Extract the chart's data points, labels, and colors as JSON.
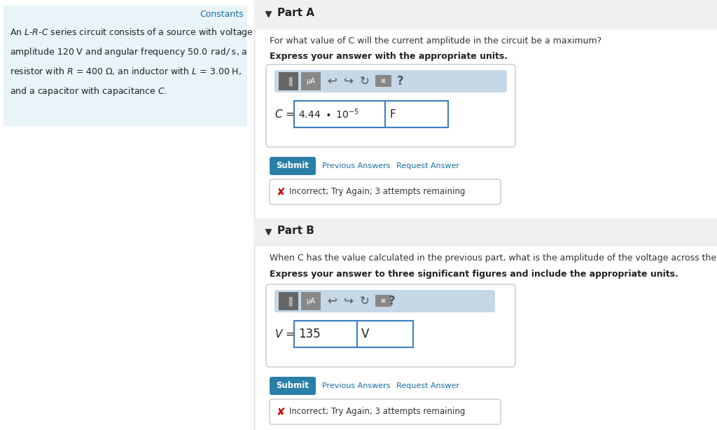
{
  "bg_color": "#ffffff",
  "left_panel_bg": "#e8f4f8",
  "constants_text": "Constants",
  "constants_color": "#1a6fa8",
  "submit_bg": "#2a7fa8",
  "submit_text_color": "#ffffff",
  "link_color": "#1a6fa8",
  "incorrect_text": "Incorrect; Try Again; 3 attempts remaining",
  "incorrect_color": "#cc0000",
  "toolbar_bg": "#c5d8e8",
  "input_border": "#3a7fc1",
  "panel_border": "#c8c8c8",
  "header_bg": "#f0f0f0",
  "partA_label": "Part A",
  "partA_question": "For what value of C will the current amplitude in the circuit be a maximum?",
  "partA_instruction": "Express your answer with the appropriate units.",
  "partB_label": "Part B",
  "partB_question": "When C has the value calculated in the previous part, what is the amplitude of the voltage across the inductor?",
  "partB_instruction": "Express your answer to three significant figures and include the appropriate units."
}
